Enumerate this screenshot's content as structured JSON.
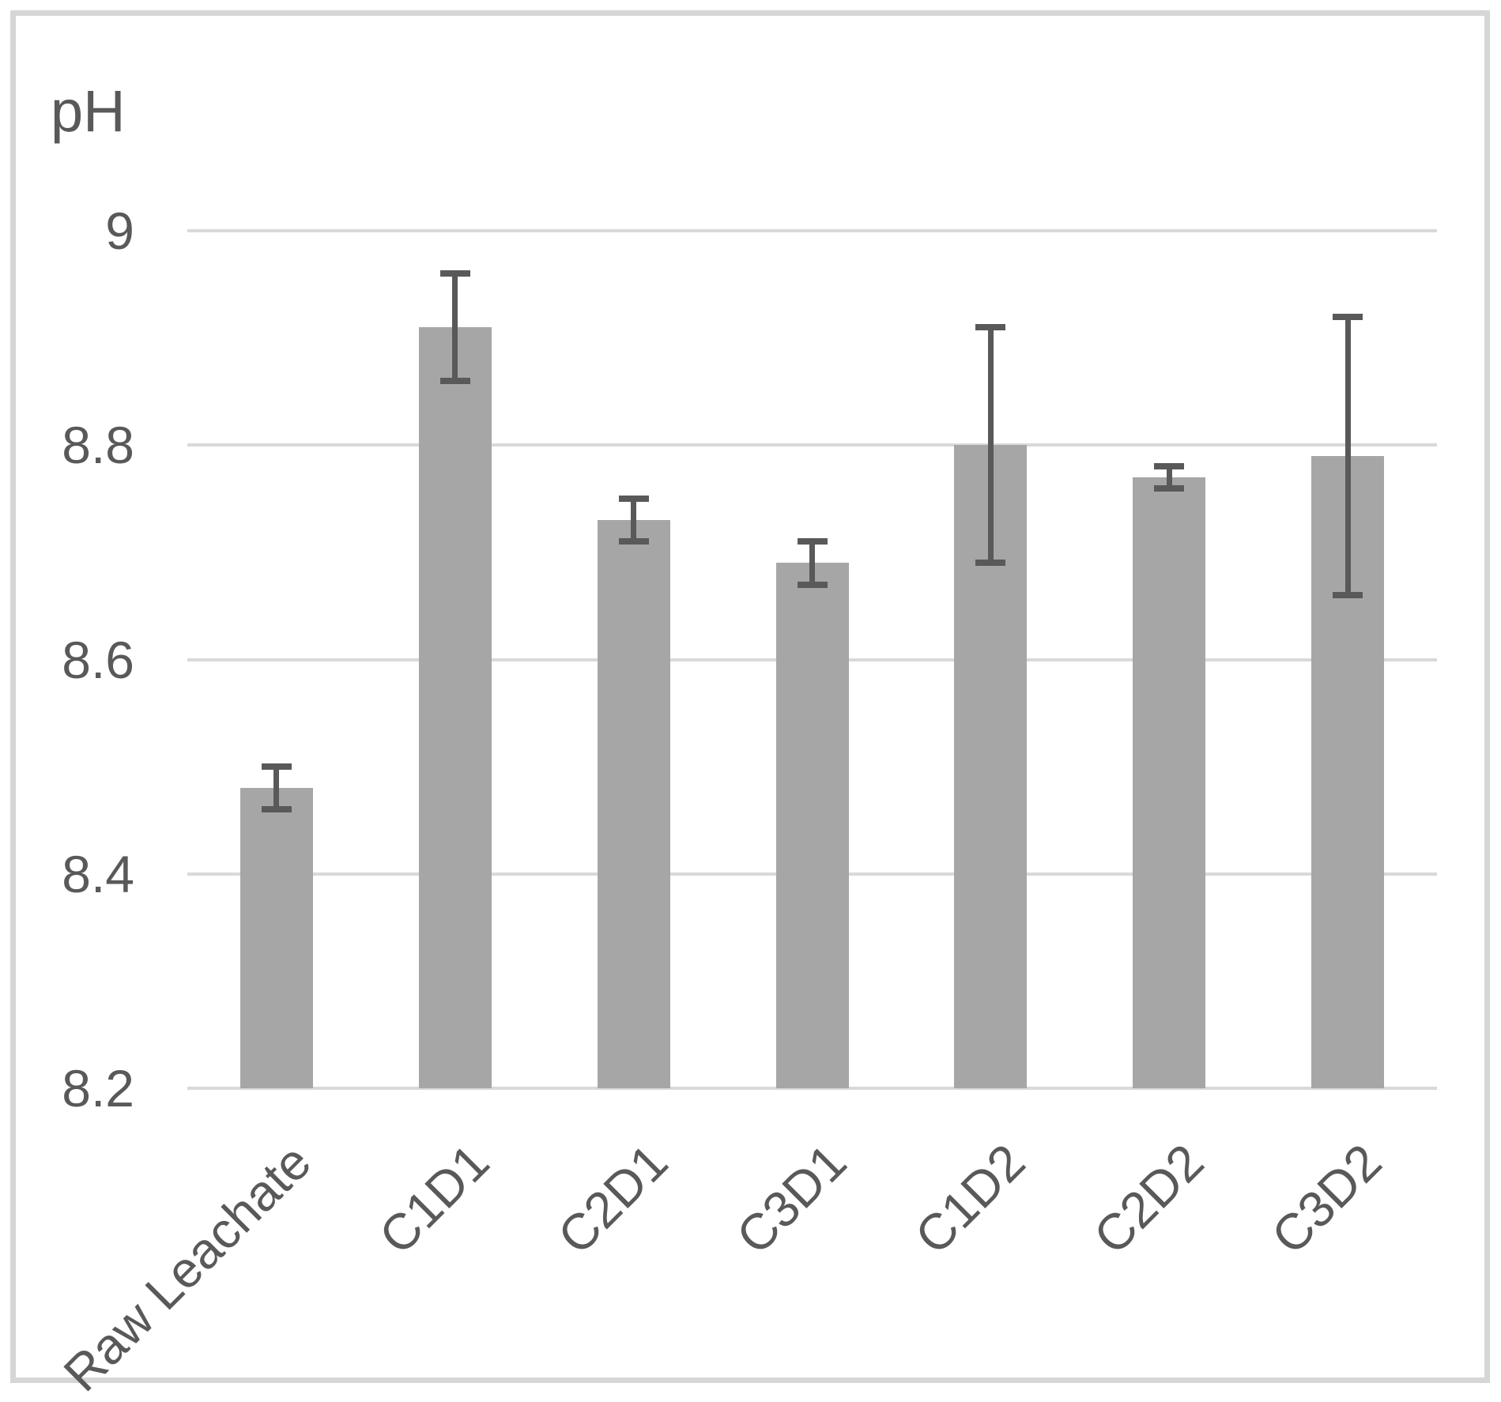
{
  "chart_data": {
    "type": "bar",
    "title": "pH",
    "categories": [
      "Raw Leachate",
      "C1D1",
      "C2D1",
      "C3D1",
      "C1D2",
      "C2D2",
      "C3D2"
    ],
    "values": [
      8.48,
      8.91,
      8.73,
      8.69,
      8.8,
      8.77,
      8.79
    ],
    "error_high": [
      8.5,
      8.96,
      8.75,
      8.71,
      8.91,
      8.78,
      8.92
    ],
    "error_low": [
      8.46,
      8.86,
      8.71,
      8.67,
      8.69,
      8.76,
      8.66
    ],
    "xlabel": "",
    "ylabel": "pH",
    "ylim": [
      8.2,
      9.0
    ],
    "ytick_labels": [
      "9",
      "8.8",
      "8.6",
      "8.4",
      "8.2"
    ],
    "yticks": [
      9.0,
      8.8,
      8.6,
      8.4,
      8.2
    ],
    "grid": true,
    "legend": "none",
    "bar_color": "#a6a6a6",
    "error_bar_color": "#595959",
    "gridline_color": "#d9d9d9",
    "text_color": "#595959",
    "frame_color": "#d6d6d6"
  }
}
